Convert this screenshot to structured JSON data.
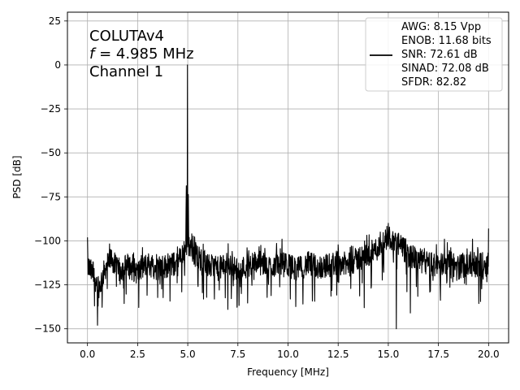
{
  "chart_data": {
    "type": "line",
    "xlabel": "Frequency [MHz]",
    "ylabel": "PSD [dB]",
    "xlim": [
      -1.0,
      21.0
    ],
    "ylim": [
      -158,
      30
    ],
    "xticks": [
      0.0,
      2.5,
      5.0,
      7.5,
      10.0,
      12.5,
      15.0,
      17.5,
      20.0
    ],
    "xtick_labels": [
      "0.0",
      "2.5",
      "5.0",
      "7.5",
      "10.0",
      "12.5",
      "15.0",
      "17.5",
      "20.0"
    ],
    "yticks": [
      25,
      0,
      -25,
      -50,
      -75,
      -100,
      -125,
      -150
    ],
    "ytick_labels": [
      "25",
      "0",
      "−25",
      "−50",
      "−75",
      "−100",
      "−125",
      "−150"
    ],
    "grid": true,
    "line_color": "#000000",
    "annotation": {
      "line1": "COLUTAv4",
      "line2_italic": "f",
      "line2_rest": " = 4.985 MHz",
      "line3": "Channel 1"
    },
    "legend": {
      "placement": "top-right",
      "lines": [
        "AWG: 8.15 Vpp",
        "ENOB: 11.68 bits",
        "SNR: 72.61 dB",
        "SINAD: 72.08 dB",
        "SFDR: 82.82"
      ]
    },
    "noise_floor_db": -114,
    "series": [
      {
        "x": [
          0.0,
          0.3,
          0.6,
          0.9,
          1.2,
          1.5,
          2.0,
          2.5,
          3.0,
          3.5,
          4.0,
          4.5,
          4.7,
          4.9,
          4.985,
          5.05,
          5.3,
          5.6,
          6.0,
          6.5,
          7.0,
          7.5,
          8.0,
          8.5,
          9.0,
          9.5,
          10.0,
          10.5,
          11.0,
          11.5,
          12.0,
          12.5,
          13.0,
          13.5,
          14.0,
          14.5,
          15.0,
          15.5,
          16.0,
          16.5,
          17.0,
          17.5,
          18.0,
          18.5,
          19.0,
          19.5,
          20.0
        ],
        "y": [
          -114,
          -120,
          -126,
          -115,
          -110,
          -117,
          -114,
          -118,
          -113,
          -116,
          -114,
          -113,
          -108,
          -103,
          0,
          -102,
          -107,
          -110,
          -114,
          -116,
          -113,
          -117,
          -114,
          -112,
          -115,
          -113,
          -114,
          -116,
          -113,
          -115,
          -114,
          -112,
          -114,
          -110,
          -108,
          -104,
          -97,
          -102,
          -108,
          -111,
          -113,
          -114,
          -112,
          -115,
          -113,
          -114,
          -113
        ]
      }
    ],
    "peaks": [
      {
        "x": 4.985,
        "y": 0
      },
      {
        "x": 0.0,
        "y": -98
      },
      {
        "x": 0.5,
        "y": -148
      },
      {
        "x": 0.35,
        "y": -137
      },
      {
        "x": 5.2,
        "y": -96
      },
      {
        "x": 5.4,
        "y": -101
      },
      {
        "x": 7.0,
        "y": -139
      },
      {
        "x": 9.7,
        "y": -99
      },
      {
        "x": 13.8,
        "y": -138
      },
      {
        "x": 14.6,
        "y": -95
      },
      {
        "x": 15.0,
        "y": -90
      },
      {
        "x": 15.2,
        "y": -97
      },
      {
        "x": 15.4,
        "y": -150
      },
      {
        "x": 15.65,
        "y": -99
      },
      {
        "x": 16.1,
        "y": -141
      },
      {
        "x": 17.8,
        "y": -99
      },
      {
        "x": 19.2,
        "y": -99
      },
      {
        "x": 20.0,
        "y": -93
      }
    ]
  }
}
